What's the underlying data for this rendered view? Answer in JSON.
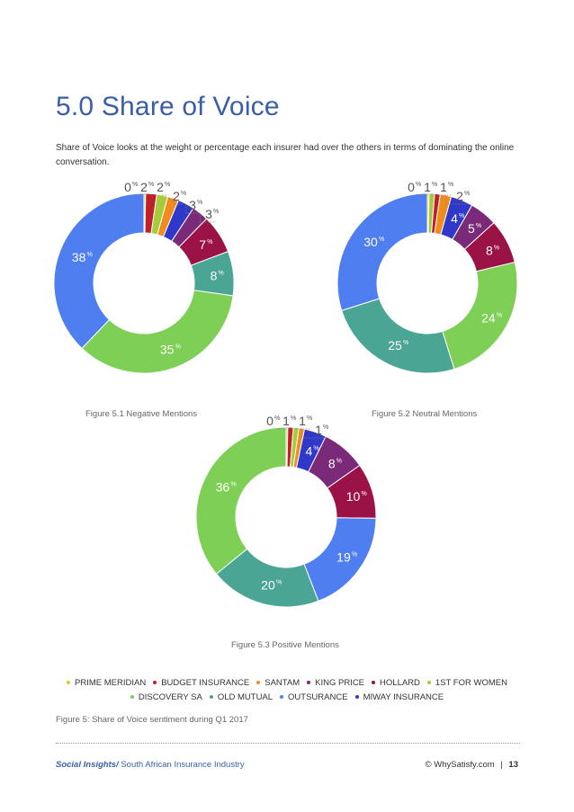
{
  "page": {
    "title": "5.0 Share of Voice",
    "intro": "Share of Voice looks at the weight or percentage each insurer had over the others in terms of dominating the online conversation.",
    "figure_note": "Figure 5: Share of Voice sentiment during Q1 2017",
    "footer": {
      "brand": "Social Insights/",
      "subject": " South African Insurance Industry",
      "copyright": "© WhySatisfy.com",
      "separator": "|",
      "page_number": "13"
    }
  },
  "legend": [
    {
      "name": "PRIME MERIDIAN",
      "color": "#e3c52a"
    },
    {
      "name": "BUDGET INSURANCE",
      "color": "#c0202a"
    },
    {
      "name": "SANTAM",
      "color": "#f08c1e"
    },
    {
      "name": "KING PRICE",
      "color": "#7a2a78"
    },
    {
      "name": "HOLLARD",
      "color": "#9a1246"
    },
    {
      "name": "1ST FOR WOMEN",
      "color": "#a6cc3a"
    },
    {
      "name": "DISCOVERY SA",
      "color": "#7ecf55"
    },
    {
      "name": "OLD MUTUAL",
      "color": "#4aa595"
    },
    {
      "name": "OUTSURANCE",
      "color": "#4f7ef0"
    },
    {
      "name": "MIWAY INSURANCE",
      "color": "#2f38c8"
    }
  ],
  "chart_data": [
    {
      "type": "pie",
      "title": "Figure 5.1 Negative Mentions",
      "categories": [
        "PRIME MERIDIAN",
        "BUDGET INSURANCE",
        "1ST FOR WOMEN",
        "SANTAM",
        "MIWAY INSURANCE",
        "KING PRICE",
        "HOLLARD",
        "OLD MUTUAL",
        "DISCOVERY SA",
        "OUTSURANCE"
      ],
      "values": [
        0.3,
        2,
        2,
        2,
        3,
        3,
        7,
        8,
        35,
        38
      ],
      "labels": [
        "0",
        "2",
        "2",
        "2",
        "3",
        "3",
        "7",
        "8",
        "35",
        "38"
      ]
    },
    {
      "type": "pie",
      "title": "Figure 5.2 Neutral Mentions",
      "categories": [
        "PRIME MERIDIAN",
        "1ST FOR WOMEN",
        "BUDGET INSURANCE",
        "SANTAM",
        "MIWAY INSURANCE",
        "KING PRICE",
        "HOLLARD",
        "DISCOVERY SA",
        "OLD MUTUAL",
        "OUTSURANCE"
      ],
      "values": [
        0.3,
        1,
        1,
        2,
        4,
        5,
        8,
        24,
        25,
        30
      ],
      "labels": [
        "0",
        "1",
        "1",
        "2",
        "4",
        "5",
        "8",
        "24",
        "25",
        "30"
      ]
    },
    {
      "type": "pie",
      "title": "Figure 5.3 Positive Mentions",
      "categories": [
        "PRIME MERIDIAN",
        "BUDGET INSURANCE",
        "1ST FOR WOMEN",
        "SANTAM",
        "MIWAY INSURANCE",
        "KING PRICE",
        "HOLLARD",
        "OUTSURANCE",
        "OLD MUTUAL",
        "DISCOVERY SA"
      ],
      "values": [
        0.3,
        1,
        1,
        1,
        4,
        8,
        10,
        19,
        20,
        36
      ],
      "labels": [
        "0",
        "1",
        "1",
        "1",
        "4",
        "8",
        "10",
        "19",
        "20",
        "36"
      ]
    }
  ]
}
